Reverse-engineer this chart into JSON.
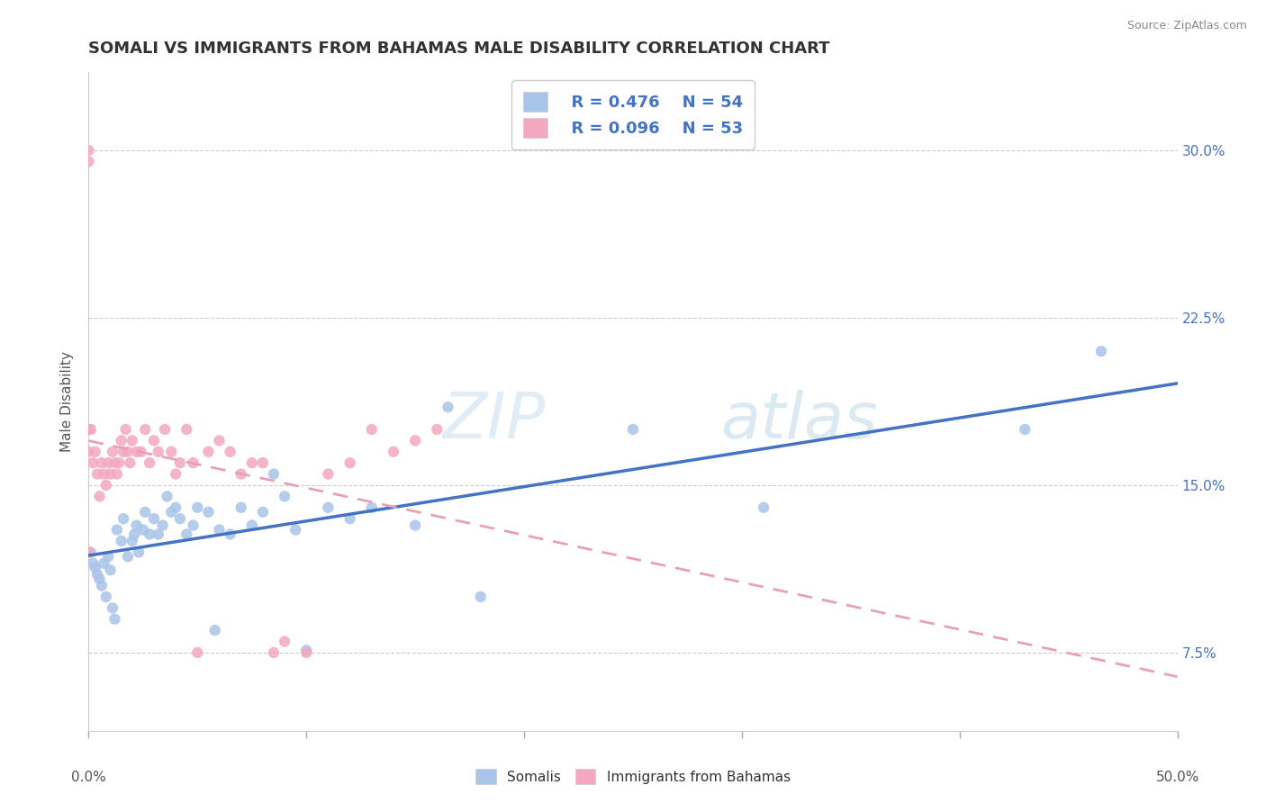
{
  "title": "SOMALI VS IMMIGRANTS FROM BAHAMAS MALE DISABILITY CORRELATION CHART",
  "source": "Source: ZipAtlas.com",
  "ylabel": "Male Disability",
  "yticks": [
    "7.5%",
    "15.0%",
    "22.5%",
    "30.0%"
  ],
  "ytick_vals": [
    0.075,
    0.15,
    0.225,
    0.3
  ],
  "xrange": [
    0.0,
    0.5
  ],
  "yrange": [
    0.04,
    0.335
  ],
  "legend_r1": "R = 0.476",
  "legend_n1": "N = 54",
  "legend_r2": "R = 0.096",
  "legend_n2": "N = 53",
  "color_somali": "#a8c4e8",
  "color_bahamas": "#f4a8c0",
  "trendline_somali_color": "#4472c4",
  "trendline_bahamas_color": "#e8a0b8",
  "somali_x": [
    0.001,
    0.002,
    0.003,
    0.004,
    0.005,
    0.006,
    0.007,
    0.008,
    0.009,
    0.01,
    0.011,
    0.012,
    0.013,
    0.015,
    0.016,
    0.018,
    0.02,
    0.021,
    0.022,
    0.023,
    0.025,
    0.026,
    0.028,
    0.03,
    0.032,
    0.034,
    0.036,
    0.038,
    0.04,
    0.042,
    0.045,
    0.048,
    0.05,
    0.055,
    0.058,
    0.06,
    0.065,
    0.07,
    0.075,
    0.08,
    0.085,
    0.09,
    0.095,
    0.1,
    0.11,
    0.12,
    0.13,
    0.15,
    0.165,
    0.18,
    0.25,
    0.31,
    0.43,
    0.465
  ],
  "somali_y": [
    0.12,
    0.115,
    0.113,
    0.11,
    0.108,
    0.105,
    0.115,
    0.1,
    0.118,
    0.112,
    0.095,
    0.09,
    0.13,
    0.125,
    0.135,
    0.118,
    0.125,
    0.128,
    0.132,
    0.12,
    0.13,
    0.138,
    0.128,
    0.135,
    0.128,
    0.132,
    0.145,
    0.138,
    0.14,
    0.135,
    0.128,
    0.132,
    0.14,
    0.138,
    0.085,
    0.13,
    0.128,
    0.14,
    0.132,
    0.138,
    0.155,
    0.145,
    0.13,
    0.076,
    0.14,
    0.135,
    0.14,
    0.132,
    0.185,
    0.1,
    0.175,
    0.14,
    0.175,
    0.21
  ],
  "bahamas_x": [
    0.0,
    0.0,
    0.0,
    0.0,
    0.0,
    0.001,
    0.002,
    0.003,
    0.004,
    0.005,
    0.006,
    0.007,
    0.008,
    0.009,
    0.01,
    0.011,
    0.012,
    0.013,
    0.014,
    0.015,
    0.016,
    0.017,
    0.018,
    0.019,
    0.02,
    0.022,
    0.024,
    0.026,
    0.028,
    0.03,
    0.032,
    0.035,
    0.038,
    0.04,
    0.042,
    0.045,
    0.048,
    0.05,
    0.055,
    0.06,
    0.065,
    0.07,
    0.075,
    0.08,
    0.085,
    0.09,
    0.1,
    0.11,
    0.12,
    0.13,
    0.14,
    0.15,
    0.16
  ],
  "bahamas_y": [
    0.3,
    0.295,
    0.175,
    0.165,
    0.12,
    0.175,
    0.16,
    0.165,
    0.155,
    0.145,
    0.16,
    0.155,
    0.15,
    0.16,
    0.155,
    0.165,
    0.16,
    0.155,
    0.16,
    0.17,
    0.165,
    0.175,
    0.165,
    0.16,
    0.17,
    0.165,
    0.165,
    0.175,
    0.16,
    0.17,
    0.165,
    0.175,
    0.165,
    0.155,
    0.16,
    0.175,
    0.16,
    0.075,
    0.165,
    0.17,
    0.165,
    0.155,
    0.16,
    0.16,
    0.075,
    0.08,
    0.075,
    0.155,
    0.16,
    0.175,
    0.165,
    0.17,
    0.175
  ],
  "watermark_zip": "ZIP",
  "watermark_atlas": "atlas"
}
